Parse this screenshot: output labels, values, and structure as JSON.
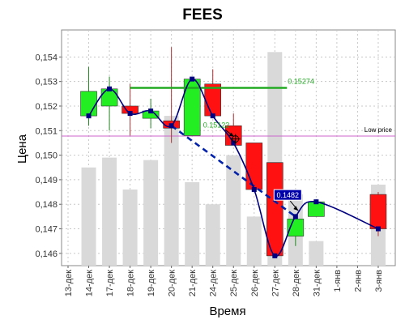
{
  "chart_data": {
    "type": "candlestick",
    "title": "FEES",
    "xlabel": "Время",
    "ylabel": "Цена",
    "ylim": [
      0.1455,
      0.1551
    ],
    "yticks": [
      "0,146",
      "0,147",
      "0,148",
      "0,149",
      "0,150",
      "0,151",
      "0,152",
      "0,153",
      "0,154"
    ],
    "categories": [
      "13-дек",
      "14-дек",
      "17-дек",
      "18-дек",
      "19-дек",
      "20-дек",
      "21-дек",
      "24-дек",
      "25-дек",
      "26-дек",
      "27-дек",
      "28-дек",
      "31-дек",
      "1-янв",
      "2-янв",
      "3-янв"
    ],
    "candles": [
      {
        "date": "14-дек",
        "open": 0.1516,
        "close": 0.1526,
        "high": 0.1536,
        "low": 0.1512
      },
      {
        "date": "17-дек",
        "open": 0.152,
        "close": 0.1527,
        "high": 0.1532,
        "low": 0.151
      },
      {
        "date": "18-дек",
        "open": 0.152,
        "close": 0.1517,
        "high": 0.1529,
        "low": 0.1508
      },
      {
        "date": "19-дек",
        "open": 0.1515,
        "close": 0.1518,
        "high": 0.1523,
        "low": 0.1511
      },
      {
        "date": "20-дек",
        "open": 0.1514,
        "close": 0.1511,
        "high": 0.1544,
        "low": 0.1505
      },
      {
        "date": "21-дек",
        "open": 0.1508,
        "close": 0.1531,
        "high": 0.1532,
        "low": 0.1508
      },
      {
        "date": "24-дек",
        "open": 0.1529,
        "close": 0.1516,
        "high": 0.1535,
        "low": 0.1516
      },
      {
        "date": "25-дек",
        "open": 0.1512,
        "close": 0.1504,
        "high": 0.1517,
        "low": 0.1504
      },
      {
        "date": "26-дек",
        "open": 0.1505,
        "close": 0.1486,
        "high": 0.1505,
        "low": 0.1485
      },
      {
        "date": "27-дек",
        "open": 0.1497,
        "close": 0.1459,
        "high": 0.1497,
        "low": 0.1458
      },
      {
        "date": "28-дек",
        "open": 0.1467,
        "close": 0.1474,
        "high": 0.1476,
        "low": 0.1463
      },
      {
        "date": "31-дек",
        "open": 0.1475,
        "close": 0.1481,
        "high": 0.1482,
        "low": 0.1475
      },
      {
        "date": "3-янв",
        "open": 0.1484,
        "close": 0.147,
        "high": 0.1485,
        "low": 0.1467
      }
    ],
    "line_points": [
      {
        "date": "14-дек",
        "value": 0.1516
      },
      {
        "date": "17-дек",
        "value": 0.1527
      },
      {
        "date": "18-дек",
        "value": 0.1517
      },
      {
        "date": "19-дек",
        "value": 0.1518
      },
      {
        "date": "20-дек",
        "value": 0.1512
      },
      {
        "date": "21-дек",
        "value": 0.1531
      },
      {
        "date": "24-дек",
        "value": 0.1516
      },
      {
        "date": "25-дек",
        "value": 0.1505
      },
      {
        "date": "26-дек",
        "value": 0.1486
      },
      {
        "date": "27-дек",
        "value": 0.1459
      },
      {
        "date": "28-дек",
        "value": 0.1475
      },
      {
        "date": "31-дек",
        "value": 0.1481
      },
      {
        "date": "3-янв",
        "value": 0.147
      }
    ],
    "volume_bars": [
      {
        "date": "14-дек",
        "value": 0.1495
      },
      {
        "date": "17-дек",
        "value": 0.1499
      },
      {
        "date": "18-дек",
        "value": 0.1486
      },
      {
        "date": "19-дек",
        "value": 0.1498
      },
      {
        "date": "20-дек",
        "value": 0.1516
      },
      {
        "date": "21-дек",
        "value": 0.1489
      },
      {
        "date": "24-дек",
        "value": 0.148
      },
      {
        "date": "25-дек",
        "value": 0.15
      },
      {
        "date": "26-дек",
        "value": 0.1475
      },
      {
        "date": "27-дек",
        "value": 0.1542
      },
      {
        "date": "28-дек",
        "value": 0.1484
      },
      {
        "date": "31-дек",
        "value": 0.1465
      },
      {
        "date": "3-янв",
        "value": 0.1488
      }
    ],
    "annotations": {
      "low_price": {
        "label": "Low price",
        "value": 0.15078
      },
      "hline": {
        "label": "0.15274",
        "value": 0.15274,
        "from": "18-дек",
        "to": "27-дек"
      },
      "trend": {
        "from_date": "20-дек",
        "from_value": 0.1512,
        "to_date": "28-дек",
        "to_value": 0.1475
      },
      "callout_top": {
        "label": "0.15122",
        "date": "24-дек",
        "value": 0.15122
      },
      "callout_box": {
        "label": "0.1482",
        "date": "27-дек",
        "value": 0.1482
      }
    },
    "colors": {
      "up": "#22ee22",
      "down": "#ff1111",
      "line": "#000080",
      "volume": "#d9d9d9",
      "low_price": "#cc66cc",
      "hline": "#22aa22",
      "trend": "#0022aa"
    },
    "grid": true
  }
}
